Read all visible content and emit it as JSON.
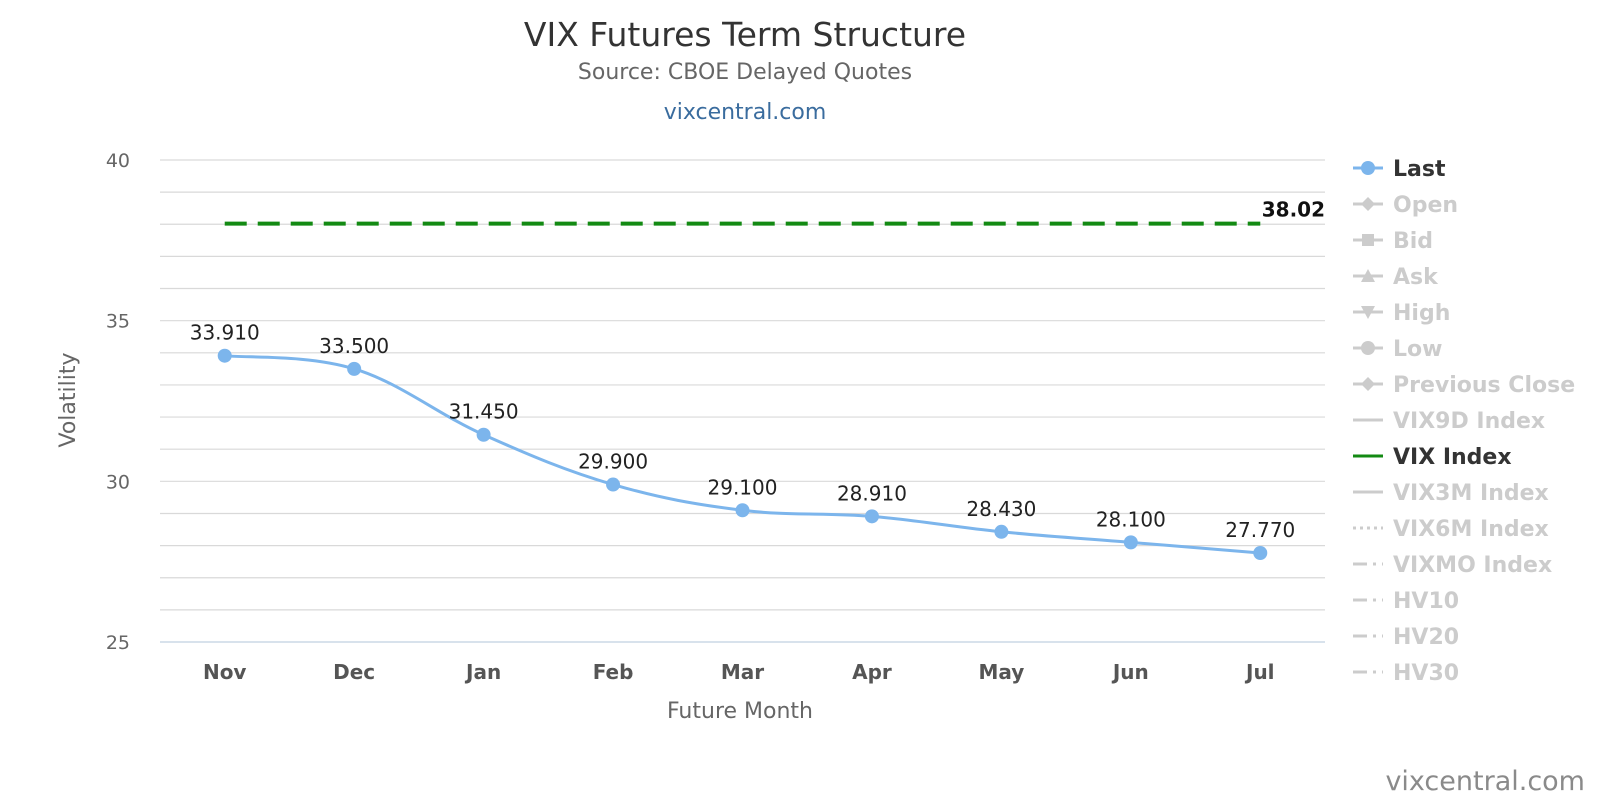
{
  "header": {
    "title": "VIX Futures Term Structure",
    "subtitle": "Source: CBOE Delayed Quotes",
    "link": "vixcentral.com"
  },
  "credit": "vixcentral.com",
  "colors": {
    "last_series": "#7cb5ec",
    "vix_index": "#138a13",
    "gridline": "#d9d9d9",
    "legend_active": "#333333",
    "legend_inactive": "#cccccc"
  },
  "chart_data": {
    "type": "line",
    "xlabel": "Future Month",
    "ylabel": "Volatility",
    "ylim": [
      25,
      40
    ],
    "yticks": [
      25,
      30,
      35,
      40
    ],
    "categories": [
      "Nov",
      "Dec",
      "Jan",
      "Feb",
      "Mar",
      "Apr",
      "May",
      "Jun",
      "Jul"
    ],
    "series": [
      {
        "name": "Last",
        "values": [
          33.91,
          33.5,
          31.45,
          29.9,
          29.1,
          28.91,
          28.43,
          28.1,
          27.77
        ],
        "labels": [
          "33.910",
          "33.500",
          "31.450",
          "29.900",
          "29.100",
          "28.910",
          "28.430",
          "28.100",
          "27.770"
        ],
        "style": "solid-marker"
      },
      {
        "name": "VIX Index",
        "value": 38.02,
        "label": "38.02",
        "style": "dashed"
      }
    ],
    "grid": true,
    "legend_position": "right",
    "legend": [
      {
        "name": "Last",
        "symbol": "circle",
        "active": true
      },
      {
        "name": "Open",
        "symbol": "diamond",
        "active": false
      },
      {
        "name": "Bid",
        "symbol": "square",
        "active": false
      },
      {
        "name": "Ask",
        "symbol": "triangle",
        "active": false
      },
      {
        "name": "High",
        "symbol": "triangle-down",
        "active": false
      },
      {
        "name": "Low",
        "symbol": "circle",
        "active": false
      },
      {
        "name": "Previous Close",
        "symbol": "diamond",
        "active": false
      },
      {
        "name": "VIX9D Index",
        "symbol": "line",
        "active": false
      },
      {
        "name": "VIX Index",
        "symbol": "line",
        "active": true
      },
      {
        "name": "VIX3M Index",
        "symbol": "line",
        "active": false
      },
      {
        "name": "VIX6M Index",
        "symbol": "dotted",
        "active": false
      },
      {
        "name": "VIXMO Index",
        "symbol": "dashdot",
        "active": false
      },
      {
        "name": "HV10",
        "symbol": "dashdot",
        "active": false
      },
      {
        "name": "HV20",
        "symbol": "dashdot",
        "active": false
      },
      {
        "name": "HV30",
        "symbol": "dashdot",
        "active": false
      }
    ]
  }
}
